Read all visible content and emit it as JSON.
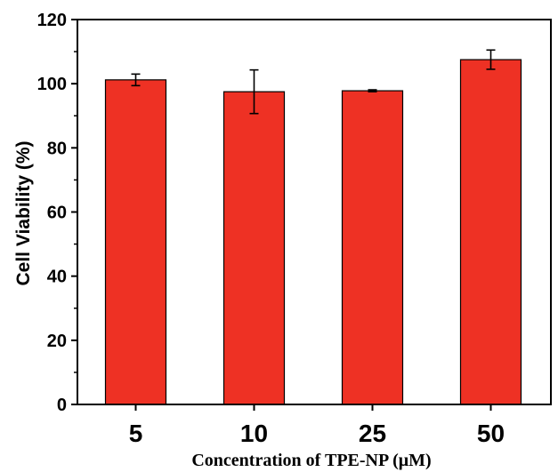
{
  "chart_data": {
    "type": "bar",
    "categories": [
      "5",
      "10",
      "25",
      "50"
    ],
    "values": [
      101.2,
      97.5,
      97.8,
      107.5
    ],
    "errors": [
      1.8,
      6.8,
      0.3,
      3.0
    ],
    "xlabel": "Concentration of TPE-NP (μM)",
    "ylabel": "Cell Viability (%)",
    "ylim": [
      0,
      120
    ],
    "yticks": [
      0,
      20,
      40,
      60,
      80,
      100,
      120
    ],
    "yticks_labels": [
      "0",
      "20",
      "40",
      "60",
      "80",
      "100",
      "120"
    ],
    "bar_color": "#ee3124",
    "grid": false,
    "legend": "none"
  }
}
